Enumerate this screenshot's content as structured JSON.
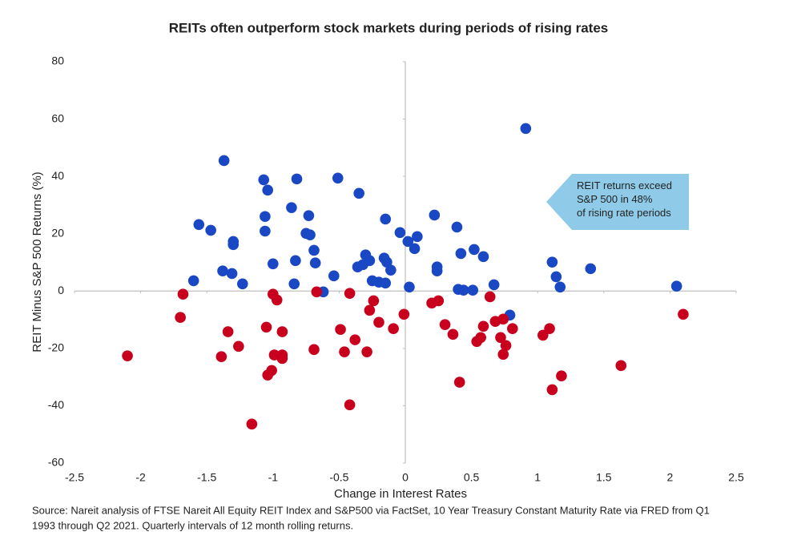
{
  "chart_data": {
    "type": "scatter",
    "title": "REITs often outperform stock markets during periods of rising rates",
    "xlabel": "Change in Interest Rates",
    "ylabel": "REIT Minus S&P 500 Returns (%)",
    "xlim": [
      -2.5,
      2.5
    ],
    "xticks": [
      -2.5,
      -2,
      -1.5,
      -1,
      -0.5,
      0,
      0.5,
      1,
      1.5,
      2,
      2.5
    ],
    "ylim": [
      -60,
      80
    ],
    "yticks": [
      -60,
      -40,
      -20,
      0,
      20,
      40,
      60,
      80
    ],
    "annotation": "REIT returns exceed S&P 500 in 48% of rising rate periods",
    "source": [
      "Source: Nareit analysis of FTSE Nareit All Equity REIT Index and S&P500 via FactSet, 10 Year Treasury Constant Maturity Rate via FRED from Q1",
      "1993 through Q2 2021. Quarterly intervals of 12 month rolling returns."
    ],
    "series": [
      {
        "color": "#1a48c4",
        "x": [
          -1.37,
          0.91,
          -1.07,
          -0.82,
          -0.51,
          -1.04,
          -0.35,
          -1.56,
          -1.47,
          -1.06,
          -1.06,
          -0.86,
          -0.73,
          -0.75,
          -0.72,
          -1.3,
          -1.3,
          -0.69,
          -0.68,
          -0.83,
          -1.0,
          -1.38,
          -1.31,
          -1.23,
          -1.6,
          -0.84,
          -0.62,
          -0.54,
          -0.15,
          -0.3,
          -0.27,
          -0.32,
          -0.36,
          -0.16,
          -0.14,
          -0.11,
          -0.25,
          -0.2,
          -0.15,
          -0.04,
          0.02,
          0.09,
          0.07,
          0.03,
          0.22,
          0.24,
          0.24,
          0.39,
          0.42,
          0.52,
          0.59,
          0.4,
          0.44,
          0.51,
          0.67,
          0.79,
          1.11,
          1.14,
          1.17,
          1.4,
          2.05
        ],
        "values": [
          45.5,
          56.7,
          38.8,
          39.1,
          39.4,
          35.2,
          34.1,
          23.2,
          21.2,
          26.0,
          20.9,
          29.1,
          26.3,
          20.1,
          19.6,
          17.3,
          16.2,
          14.2,
          9.8,
          10.6,
          9.5,
          7.0,
          6.1,
          2.5,
          3.6,
          2.5,
          -0.3,
          5.3,
          25.1,
          12.6,
          10.6,
          9.2,
          8.4,
          11.5,
          10.1,
          7.3,
          3.6,
          3.1,
          2.8,
          20.4,
          17.3,
          19.0,
          14.8,
          1.4,
          26.5,
          8.4,
          7.0,
          22.3,
          13.1,
          14.5,
          12.0,
          0.6,
          0.3,
          0.3,
          2.2,
          -8.4,
          10.1,
          5.0,
          1.4,
          7.8,
          1.7
        ]
      },
      {
        "color": "#c8001e",
        "x": [
          -2.1,
          -1.7,
          -1.68,
          -1.34,
          -1.39,
          -1.26,
          -1.16,
          -1.05,
          -1.04,
          -1.01,
          -1.0,
          -0.97,
          -0.99,
          -0.93,
          -0.93,
          -0.93,
          -0.69,
          -0.67,
          -0.49,
          -0.46,
          -0.42,
          -0.42,
          -0.38,
          -0.29,
          -0.27,
          -0.24,
          -0.2,
          -0.09,
          -0.01,
          0.2,
          0.25,
          0.3,
          0.36,
          0.41,
          0.54,
          0.57,
          0.59,
          0.64,
          0.68,
          0.72,
          0.74,
          0.76,
          0.74,
          0.81,
          1.04,
          1.09,
          1.11,
          1.18,
          1.63,
          2.1
        ],
        "values": [
          -22.6,
          -9.2,
          -1.1,
          -14.2,
          -22.9,
          -19.3,
          -46.4,
          -12.6,
          -29.3,
          -27.7,
          -1.1,
          -3.1,
          -22.3,
          -14.2,
          -22.3,
          -23.5,
          -20.4,
          -0.3,
          -13.4,
          -21.2,
          -0.8,
          -39.7,
          -17.0,
          -21.2,
          -6.7,
          -3.4,
          -10.9,
          -13.1,
          -8.1,
          -4.2,
          -3.4,
          -11.7,
          -15.1,
          -31.8,
          -17.6,
          -16.2,
          -12.3,
          -2.0,
          -10.6,
          -16.2,
          -9.8,
          -19.0,
          -22.1,
          -13.1,
          -15.4,
          -13.1,
          -34.4,
          -29.6,
          -26.0,
          -8.1
        ]
      }
    ]
  }
}
